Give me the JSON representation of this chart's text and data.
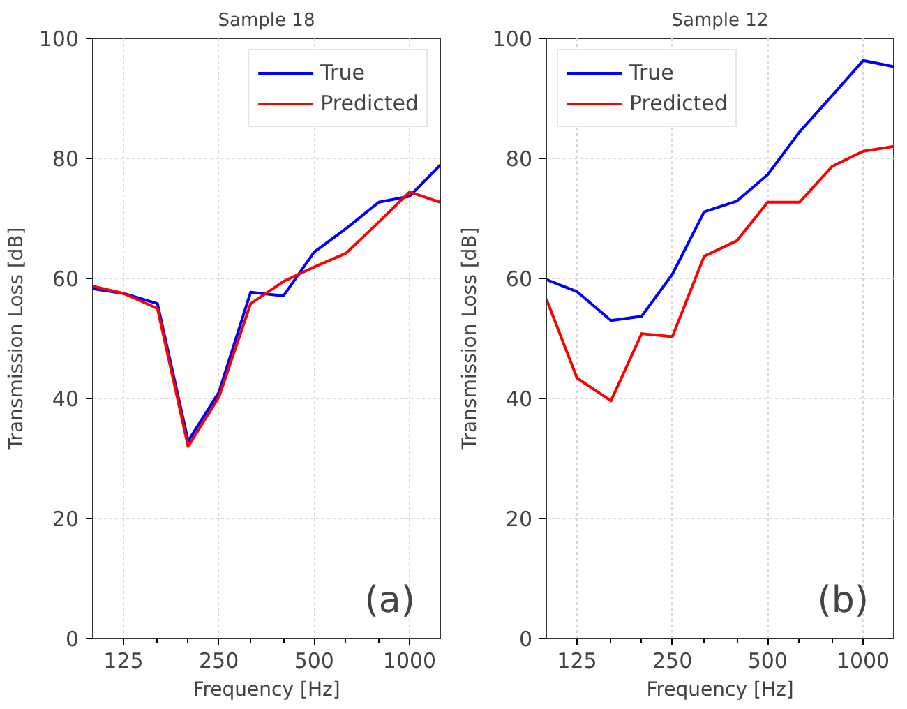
{
  "chart_data": [
    {
      "type": "line",
      "title": "Sample 18",
      "xlabel": "Frequency [Hz]",
      "ylabel": "Transmission Loss [dB]",
      "x": [
        100,
        125,
        160,
        200,
        250,
        315,
        400,
        500,
        630,
        800,
        1000,
        1250
      ],
      "series": [
        {
          "name": "True",
          "color": "#0000ff",
          "values": [
            58.3,
            57.5,
            55.8,
            32.9,
            41,
            57.7,
            57.1,
            64.4,
            68.3,
            72.7,
            73.7,
            78.9
          ]
        },
        {
          "name": "Predicted",
          "color": "#ff0000",
          "values": [
            58.7,
            57.5,
            55,
            32,
            40.2,
            55.8,
            59.5,
            61.9,
            64.2,
            69.4,
            74.4,
            72.7
          ]
        }
      ],
      "log": "x",
      "xlim": [
        100,
        1250
      ],
      "xticks": [
        125,
        {
          "value": 160,
          "label": null
        },
        {
          "value": 200,
          "label": null
        },
        250,
        {
          "value": 315,
          "label": null
        },
        {
          "value": 400,
          "label": null
        },
        500,
        {
          "value": 630,
          "label": null
        },
        {
          "value": 800,
          "label": null
        },
        1000
      ],
      "ylim": [
        0,
        100
      ],
      "yticks": [
        0,
        20,
        40,
        60,
        80,
        100
      ],
      "grid": true,
      "legend": "top right",
      "annotations": [
        "(a)"
      ]
    },
    {
      "type": "line",
      "title": "Sample 12",
      "xlabel": "Frequency [Hz]",
      "ylabel": "Transmission Loss [dB]",
      "x": [
        100,
        125,
        160,
        200,
        250,
        315,
        400,
        500,
        630,
        800,
        1000,
        1250
      ],
      "series": [
        {
          "name": "True",
          "color": "#0000ff",
          "values": [
            59.8,
            57.8,
            53,
            53.7,
            60.7,
            71.1,
            72.9,
            77.3,
            84.4,
            90.5,
            96.3,
            95.3
          ]
        },
        {
          "name": "Predicted",
          "color": "#ff0000",
          "values": [
            56.6,
            43.4,
            39.6,
            50.8,
            50.3,
            63.7,
            66.3,
            72.7,
            72.7,
            78.7,
            81.2,
            82
          ]
        }
      ],
      "log": "x",
      "xlim": [
        100,
        1250
      ],
      "xticks": [
        125,
        {
          "value": 160,
          "label": null
        },
        {
          "value": 200,
          "label": null
        },
        250,
        {
          "value": 315,
          "label": null
        },
        {
          "value": 400,
          "label": null
        },
        500,
        {
          "value": 630,
          "label": null
        },
        {
          "value": 800,
          "label": null
        },
        1000
      ],
      "ylim": [
        0,
        100
      ],
      "yticks": [
        0,
        20,
        40,
        60,
        80,
        100
      ],
      "grid": true,
      "legend": "top left",
      "annotations": [
        "(b)"
      ]
    }
  ]
}
